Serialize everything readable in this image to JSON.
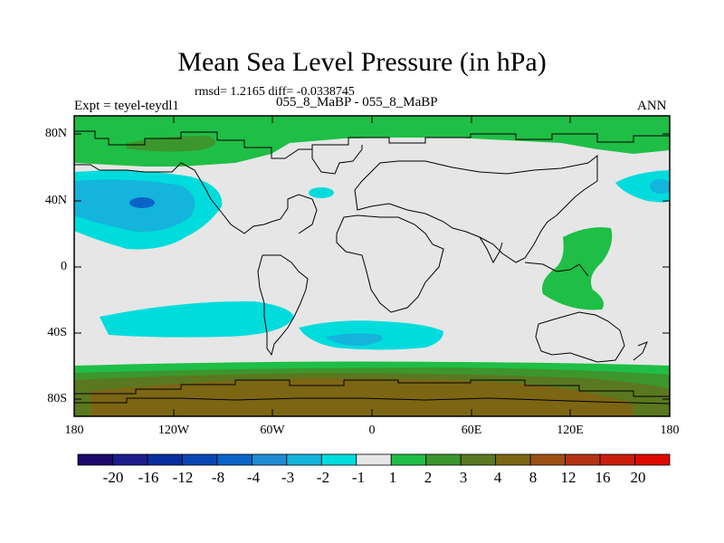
{
  "title": "Mean Sea Level Pressure (in hPa)",
  "stats_line": "rmsd= 1.2165 diff= -0.0338745",
  "experiment": "Expt = teyel-teydl1",
  "case_line": "055_8_MaBP - 055_8_MaBP",
  "season": "ANN",
  "y_ticks": [
    "80N",
    "40N",
    "0",
    "40S",
    "80S"
  ],
  "x_ticks": [
    "180",
    "120W",
    "60W",
    "0",
    "60E",
    "120E",
    "180"
  ],
  "colorbar": {
    "labels": [
      "-20",
      "-16",
      "-12",
      "-8",
      "-4",
      "-3",
      "-2",
      "-1",
      "1",
      "2",
      "3",
      "4",
      "8",
      "12",
      "16",
      "20"
    ],
    "colors": [
      "#1c0a6b",
      "#1c1c8c",
      "#0a2e9e",
      "#0a46b4",
      "#0a64c8",
      "#1e8cd2",
      "#14b4dc",
      "#00dcdc",
      "#e6e6e6",
      "#1fbe46",
      "#3c962d",
      "#5a7820",
      "#7c6614",
      "#9c5014",
      "#b43214",
      "#c81e0a",
      "#dc0a00"
    ]
  },
  "colors": {
    "land_background": "#e6e6e6",
    "pos_light": "#1fbe46",
    "pos_mid": "#3c962d",
    "pos_dark": "#5a7820",
    "pos_brown": "#7c6614",
    "neg_light": "#00dcdc",
    "neg_mid": "#14b4dc",
    "neg_dark": "#1e8cd2",
    "neg_core": "#0a64c8"
  }
}
